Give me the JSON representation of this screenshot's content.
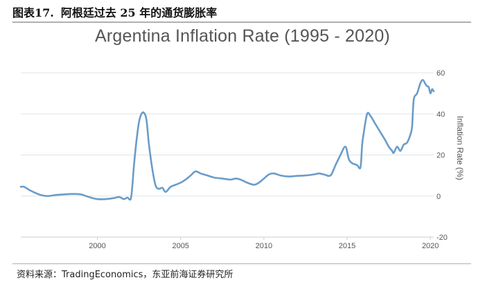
{
  "header": {
    "figure_label": "图表17.",
    "title": "阿根廷过去 25 年的通货膨胀率"
  },
  "source": "资料来源：TradingEconomics，东亚前海证券研究所",
  "colors": {
    "line": "#6a9cc8",
    "grid": "#dfe3e8",
    "text": "#555555"
  },
  "chart_data": {
    "type": "line",
    "title": "Argentina Inflation Rate (1995 - 2020)",
    "ylabel": "Inflation Rate (%)",
    "xlabel": "",
    "xlim": [
      1995.4,
      2020.2
    ],
    "ylim": [
      -20,
      60
    ],
    "x_ticks": [
      2000,
      2005,
      2010,
      2015,
      2020
    ],
    "x_tick_labels": [
      "2000",
      "2005",
      "2010",
      "2015",
      "2020"
    ],
    "y_ticks": [
      -20,
      0,
      20,
      40,
      60
    ],
    "y_tick_labels": [
      "-20",
      "0",
      "20",
      "40",
      "60"
    ],
    "grid": "horizontal",
    "series": [
      {
        "name": "Argentina Inflation Rate",
        "x": [
          1995.4,
          1995.6,
          1995.9,
          1996.2,
          1996.6,
          1997.0,
          1997.5,
          1998.0,
          1998.5,
          1999.0,
          1999.5,
          2000.0,
          2000.5,
          2001.0,
          2001.3,
          2001.6,
          2001.8,
          2002.0,
          2002.1,
          2002.2,
          2002.35,
          2002.5,
          2002.65,
          2002.8,
          2002.95,
          2003.1,
          2003.3,
          2003.5,
          2003.7,
          2003.9,
          2004.1,
          2004.4,
          2004.7,
          2005.0,
          2005.3,
          2005.6,
          2005.9,
          2006.2,
          2006.6,
          2007.0,
          2007.5,
          2008.0,
          2008.3,
          2008.6,
          2009.0,
          2009.4,
          2009.7,
          2010.0,
          2010.3,
          2010.6,
          2011.0,
          2011.5,
          2012.0,
          2012.5,
          2013.0,
          2013.3,
          2013.6,
          2014.0,
          2014.3,
          2014.6,
          2014.9,
          2015.1,
          2015.3,
          2015.6,
          2015.8,
          2015.9,
          2016.0,
          2016.2,
          2016.4,
          2016.7,
          2017.0,
          2017.3,
          2017.5,
          2017.7,
          2017.8,
          2018.0,
          2018.2,
          2018.4,
          2018.6,
          2018.8,
          2018.9,
          2019.0,
          2019.2,
          2019.4,
          2019.55,
          2019.7,
          2019.8,
          2019.9,
          2020.0,
          2020.1,
          2020.2
        ],
        "values": [
          4.5,
          4.5,
          3.0,
          1.8,
          0.5,
          0.0,
          0.5,
          0.8,
          1.0,
          0.8,
          -0.5,
          -1.5,
          -1.5,
          -1.0,
          -0.5,
          -1.5,
          -0.8,
          -1.5,
          5.0,
          15.0,
          27.0,
          36.0,
          40.0,
          40.5,
          37.0,
          25.0,
          13.0,
          5.0,
          3.5,
          4.0,
          2.0,
          4.5,
          5.5,
          6.5,
          8.0,
          10.0,
          12.0,
          11.0,
          10.0,
          9.0,
          8.5,
          8.0,
          8.5,
          8.0,
          6.5,
          5.5,
          6.5,
          8.5,
          10.5,
          11.0,
          10.0,
          9.5,
          9.8,
          10.0,
          10.5,
          11.0,
          10.5,
          10.0,
          15.0,
          20.0,
          24.0,
          18.0,
          16.0,
          15.0,
          14.0,
          25.0,
          31.0,
          40.0,
          39.0,
          35.0,
          31.0,
          27.0,
          24.0,
          22.0,
          21.0,
          24.0,
          22.0,
          25.0,
          26.0,
          30.0,
          34.0,
          47.0,
          50.0,
          55.0,
          56.5,
          54.5,
          53.5,
          53.0,
          50.0,
          52.0,
          51.0
        ]
      }
    ]
  }
}
